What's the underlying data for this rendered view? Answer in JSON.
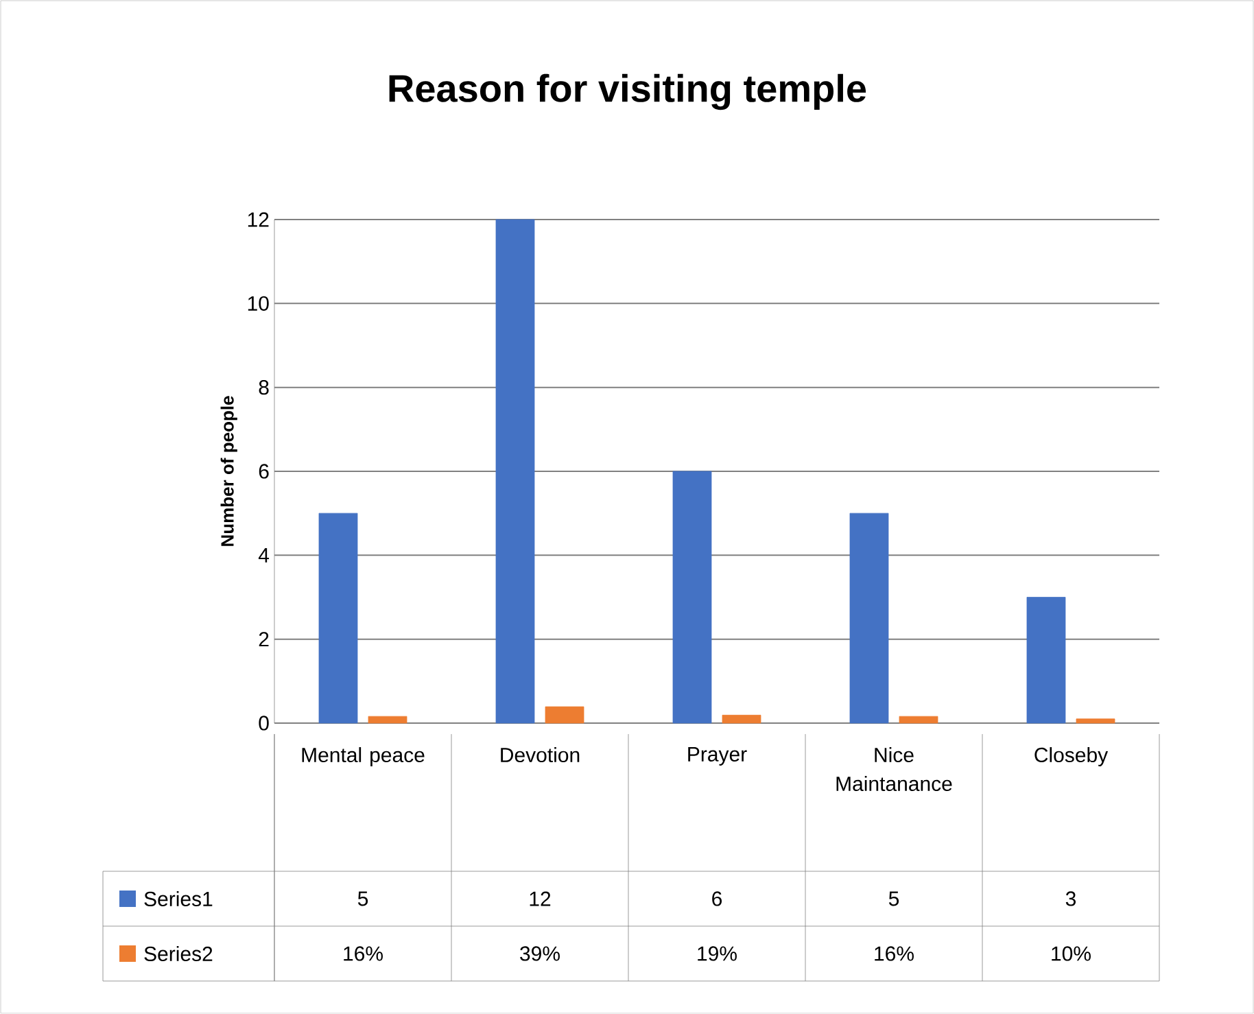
{
  "chart_data": {
    "type": "bar",
    "title": "Reason for visiting temple",
    "ylabel": "Number of people",
    "categories": [
      "Mental peace",
      "Devotion",
      "Prayer",
      "Nice Maintanance",
      "Closeby"
    ],
    "series": [
      {
        "name": "Series1",
        "color": "#4472c4",
        "values": [
          5,
          12,
          6,
          5,
          3
        ],
        "value_labels": [
          "5",
          "12",
          "6",
          "5",
          "3"
        ]
      },
      {
        "name": "Series2",
        "color": "#ed7d31",
        "values": [
          0.16,
          0.39,
          0.19,
          0.16,
          0.1
        ],
        "value_labels": [
          "16%",
          "39%",
          "19%",
          "16%",
          "10%"
        ]
      }
    ],
    "ylim": [
      0,
      12
    ],
    "yticks": [
      0,
      2,
      4,
      6,
      8,
      10,
      12
    ],
    "grid": "y",
    "legend": "bottom"
  }
}
